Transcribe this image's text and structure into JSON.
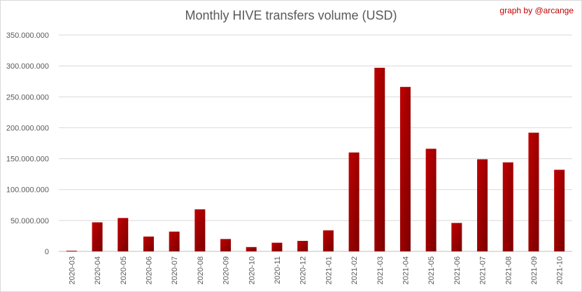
{
  "chart_data": {
    "type": "bar",
    "title": "Monthly HIVE transfers volume (USD)",
    "credit": "graph by @arcange",
    "categories": [
      "2020-03",
      "2020-04",
      "2020-05",
      "2020-06",
      "2020-07",
      "2020-08",
      "2020-09",
      "2020-10",
      "2020-11",
      "2020-12",
      "2021-01",
      "2021-02",
      "2021-03",
      "2021-04",
      "2021-05",
      "2021-06",
      "2021-07",
      "2021-08",
      "2021-09",
      "2021-10"
    ],
    "values": [
      1000000,
      47000000,
      54000000,
      24000000,
      32000000,
      68000000,
      20000000,
      7000000,
      14000000,
      17000000,
      34000000,
      160000000,
      297000000,
      266000000,
      166000000,
      46000000,
      149000000,
      144000000,
      192000000,
      132000000
    ],
    "ylim": [
      0,
      350000000
    ],
    "yticks": [
      0,
      50000000,
      100000000,
      150000000,
      200000000,
      250000000,
      300000000,
      350000000
    ],
    "ytick_labels": [
      "0",
      "50.000.000",
      "100.000.000",
      "150.000.000",
      "200.000.000",
      "250.000.000",
      "300.000.000",
      "350.000.000"
    ],
    "xlabel": "",
    "ylabel": "",
    "grid": true,
    "colors": {
      "bar": "#c00000",
      "bar_dark": "#7a0000",
      "grid": "#d9d9d9",
      "text": "#595959"
    }
  }
}
